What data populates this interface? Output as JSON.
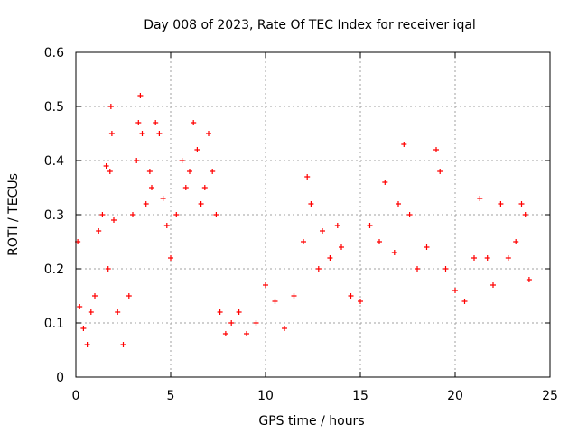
{
  "chart_data": {
    "type": "scatter",
    "title": "Day 008 of 2023, Rate Of TEC Index for receiver iqal",
    "xlabel": "GPS time / hours",
    "ylabel": "ROTI / TECUs",
    "xlim": [
      0,
      25
    ],
    "ylim": [
      0,
      0.6
    ],
    "xticks": [
      0,
      5,
      10,
      15,
      20,
      25
    ],
    "xtick_labels": [
      "0",
      "5",
      "10",
      "15",
      "20",
      "25"
    ],
    "yticks": [
      0,
      0.1,
      0.2,
      0.3,
      0.4,
      0.5,
      0.6
    ],
    "ytick_labels": [
      "0",
      "0.1",
      "0.2",
      "0.3",
      "0.4",
      "0.5",
      "0.6"
    ],
    "grid": true,
    "marker": "+",
    "color": "#ff0000",
    "series": [
      {
        "points": [
          [
            0.1,
            0.25
          ],
          [
            0.2,
            0.13
          ],
          [
            0.4,
            0.09
          ],
          [
            0.6,
            0.06
          ],
          [
            0.8,
            0.12
          ],
          [
            1.0,
            0.15
          ],
          [
            1.2,
            0.27
          ],
          [
            1.4,
            0.3
          ],
          [
            1.6,
            0.39
          ],
          [
            1.7,
            0.2
          ],
          [
            1.8,
            0.38
          ],
          [
            1.85,
            0.5
          ],
          [
            1.9,
            0.45
          ],
          [
            2.0,
            0.29
          ],
          [
            2.2,
            0.12
          ],
          [
            2.5,
            0.06
          ],
          [
            2.8,
            0.15
          ],
          [
            3.0,
            0.3
          ],
          [
            3.2,
            0.4
          ],
          [
            3.3,
            0.47
          ],
          [
            3.4,
            0.52
          ],
          [
            3.5,
            0.45
          ],
          [
            3.7,
            0.32
          ],
          [
            3.9,
            0.38
          ],
          [
            4.0,
            0.35
          ],
          [
            4.2,
            0.47
          ],
          [
            4.4,
            0.45
          ],
          [
            4.6,
            0.33
          ],
          [
            4.8,
            0.28
          ],
          [
            5.0,
            0.22
          ],
          [
            5.3,
            0.3
          ],
          [
            5.6,
            0.4
          ],
          [
            5.8,
            0.35
          ],
          [
            6.0,
            0.38
          ],
          [
            6.2,
            0.47
          ],
          [
            6.4,
            0.42
          ],
          [
            6.6,
            0.32
          ],
          [
            6.8,
            0.35
          ],
          [
            7.0,
            0.45
          ],
          [
            7.2,
            0.38
          ],
          [
            7.4,
            0.3
          ],
          [
            7.6,
            0.12
          ],
          [
            7.9,
            0.08
          ],
          [
            8.2,
            0.1
          ],
          [
            8.6,
            0.12
          ],
          [
            9.0,
            0.08
          ],
          [
            9.5,
            0.1
          ],
          [
            10.0,
            0.17
          ],
          [
            10.5,
            0.14
          ],
          [
            11.0,
            0.09
          ],
          [
            11.5,
            0.15
          ],
          [
            12.0,
            0.25
          ],
          [
            12.2,
            0.37
          ],
          [
            12.4,
            0.32
          ],
          [
            12.8,
            0.2
          ],
          [
            13.0,
            0.27
          ],
          [
            13.4,
            0.22
          ],
          [
            13.8,
            0.28
          ],
          [
            14.0,
            0.24
          ],
          [
            14.5,
            0.15
          ],
          [
            15.0,
            0.14
          ],
          [
            15.5,
            0.28
          ],
          [
            16.0,
            0.25
          ],
          [
            16.3,
            0.36
          ],
          [
            16.8,
            0.23
          ],
          [
            17.0,
            0.32
          ],
          [
            17.3,
            0.43
          ],
          [
            17.6,
            0.3
          ],
          [
            18.0,
            0.2
          ],
          [
            18.5,
            0.24
          ],
          [
            19.0,
            0.42
          ],
          [
            19.2,
            0.38
          ],
          [
            19.5,
            0.2
          ],
          [
            20.0,
            0.16
          ],
          [
            20.5,
            0.14
          ],
          [
            21.0,
            0.22
          ],
          [
            21.3,
            0.33
          ],
          [
            21.7,
            0.22
          ],
          [
            22.0,
            0.17
          ],
          [
            22.4,
            0.32
          ],
          [
            22.8,
            0.22
          ],
          [
            23.2,
            0.25
          ],
          [
            23.5,
            0.32
          ],
          [
            23.7,
            0.3
          ],
          [
            23.9,
            0.18
          ]
        ]
      }
    ]
  }
}
